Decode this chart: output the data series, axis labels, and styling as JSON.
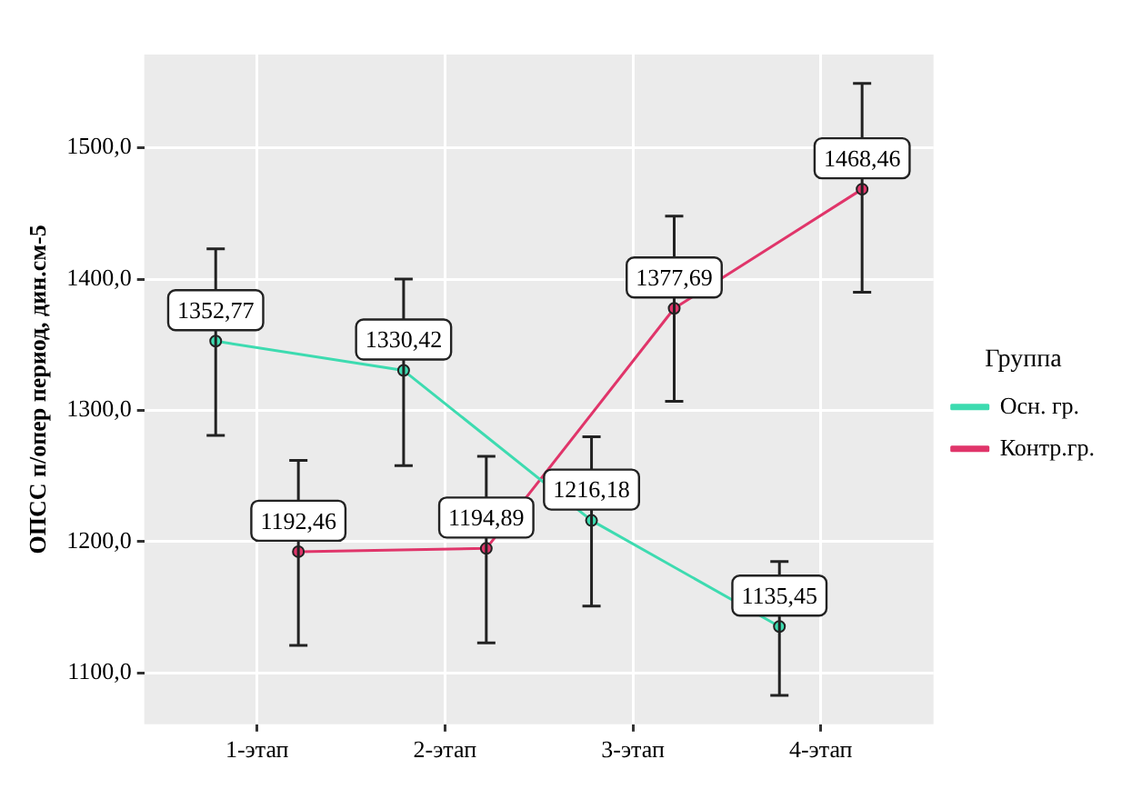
{
  "chart_data": {
    "type": "line",
    "ylabel": "ОПСС п/опер период, дин.см-5",
    "legend_title": "Группа",
    "categories": [
      "1-этап",
      "2-этап",
      "3-этап",
      "4-этап"
    ],
    "series": [
      {
        "name": "Осн. гр.",
        "color": "#3ddbb0",
        "values": [
          1352.77,
          1330.42,
          1216.18,
          1135.45
        ],
        "value_labels": [
          "1352,77",
          "1330,42",
          "1216,18",
          "1135,45"
        ],
        "errors": [
          [
            1281,
            1423
          ],
          [
            1258,
            1400
          ],
          [
            1151,
            1280
          ],
          [
            1083,
            1185
          ]
        ]
      },
      {
        "name": "Контр.гр.",
        "color": "#e0356a",
        "values": [
          1192.46,
          1194.89,
          1377.69,
          1468.46
        ],
        "value_labels": [
          "1192,46",
          "1194,89",
          "1377,69",
          "1468,46"
        ],
        "errors": [
          [
            1121,
            1262
          ],
          [
            1123,
            1265
          ],
          [
            1307,
            1448
          ],
          [
            1390,
            1549
          ]
        ]
      }
    ],
    "ylim": [
      1061,
      1571
    ],
    "yticks": [
      {
        "value": 1100,
        "label": "1100,0"
      },
      {
        "value": 1200,
        "label": "1200,0"
      },
      {
        "value": 1300,
        "label": "1300,0"
      },
      {
        "value": 1400,
        "label": "1400,0"
      },
      {
        "value": 1500,
        "label": "1500,0"
      }
    ],
    "grid": true,
    "legend": "right",
    "marker": "circle",
    "line_style": "solid"
  }
}
